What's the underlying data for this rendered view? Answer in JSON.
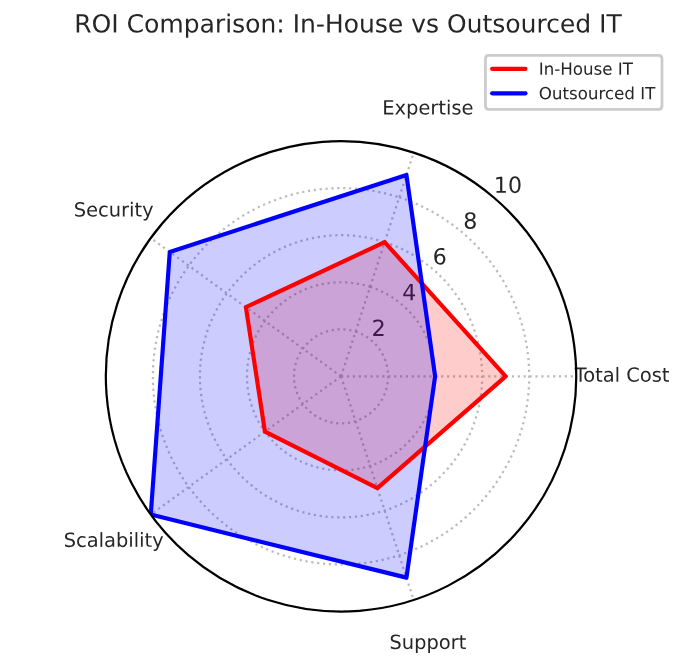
{
  "chart_data": {
    "type": "radar",
    "title": "ROI Comparison: In-House vs Outsourced IT",
    "categories": [
      "Expertise",
      "Total Cost",
      "Support",
      "Scalability",
      "Security"
    ],
    "series": [
      {
        "name": "In-House IT",
        "color": "#ff0000",
        "values": [
          6,
          7,
          5,
          4,
          5
        ]
      },
      {
        "name": "Outsourced IT",
        "color": "#0000ff",
        "values": [
          9,
          4,
          9,
          10,
          9
        ]
      }
    ],
    "ylim": [
      0,
      10
    ],
    "yticks": [
      2,
      4,
      6,
      8,
      10
    ],
    "grid": true,
    "legend": "top right"
  }
}
